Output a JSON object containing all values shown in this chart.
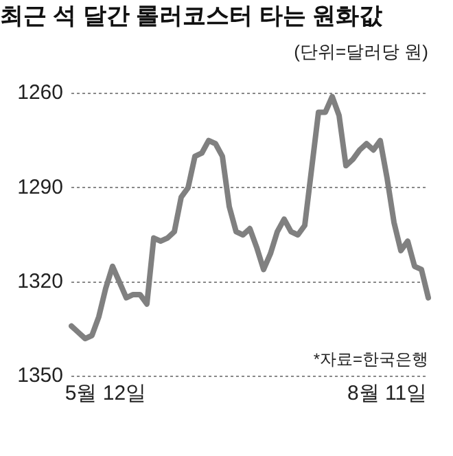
{
  "chart_data": {
    "type": "line",
    "title": "최근 석 달간 롤러코스터 타는 원화값",
    "subtitle": "(단위=달러당 원)",
    "annotations": [
      "*자료=한국은행"
    ],
    "categories": [
      null,
      null,
      null,
      null,
      null,
      "5월 12일",
      null,
      null,
      null,
      null,
      null,
      null,
      null,
      null,
      null,
      null,
      null,
      null,
      null,
      null,
      null,
      null,
      null,
      null,
      null,
      null,
      null,
      null,
      null,
      null,
      null,
      null,
      null,
      null,
      null,
      null,
      null,
      null,
      null,
      null,
      null,
      null,
      null,
      null,
      null,
      null,
      "8월 11일",
      null,
      null,
      null,
      null,
      null,
      null
    ],
    "series": [
      {
        "color": "#808080",
        "values": [
          1334,
          1336,
          1338,
          1337,
          1331,
          1322,
          1315,
          1320,
          1325,
          1324,
          1324,
          1327,
          1306,
          1307,
          1306,
          1304,
          1293,
          1290,
          1280,
          1279,
          1275,
          1276,
          1280,
          1296,
          1304,
          1305,
          1303,
          1309,
          1316,
          1311,
          1304,
          1300,
          1304,
          1305,
          1302,
          1284,
          1266,
          1266,
          1261,
          1267,
          1283,
          1281,
          1278,
          1276,
          1278,
          1275,
          1287,
          1301,
          1310,
          1307,
          1315,
          1316,
          1325
        ]
      }
    ],
    "ylim": [
      1350,
      1260
    ],
    "yticks": [
      1260,
      1290,
      1320,
      1350
    ],
    "grid": "y",
    "legend": false,
    "marker": "none",
    "line_style": "solid"
  }
}
